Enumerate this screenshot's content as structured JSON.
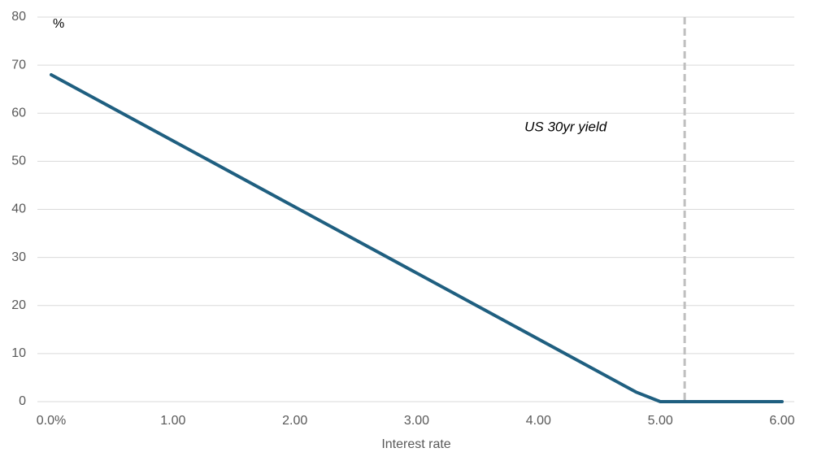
{
  "chart_data": {
    "type": "line",
    "x": [
      0,
      4.8,
      5.0,
      6.0
    ],
    "values": [
      68,
      2,
      0,
      0
    ],
    "color": "#1f5f80",
    "xlabel": "Interest rate",
    "ylabel": "%",
    "xlim": [
      0,
      6
    ],
    "xticks": [
      {
        "value": 0,
        "label": "0.0%"
      },
      {
        "value": 1,
        "label": "1.00"
      },
      {
        "value": 2,
        "label": "2.00"
      },
      {
        "value": 3,
        "label": "3.00"
      },
      {
        "value": 4,
        "label": "4.00"
      },
      {
        "value": 5,
        "label": "5.00"
      },
      {
        "value": 6,
        "label": "6.00"
      }
    ],
    "ylim": [
      0,
      80
    ],
    "yticks": [
      0,
      10,
      20,
      30,
      40,
      50,
      60,
      70,
      80
    ],
    "grid": true,
    "annotations": [
      {
        "text": "US 30yr yield",
        "x": 5.2,
        "color": "#bfbfbf"
      }
    ]
  }
}
